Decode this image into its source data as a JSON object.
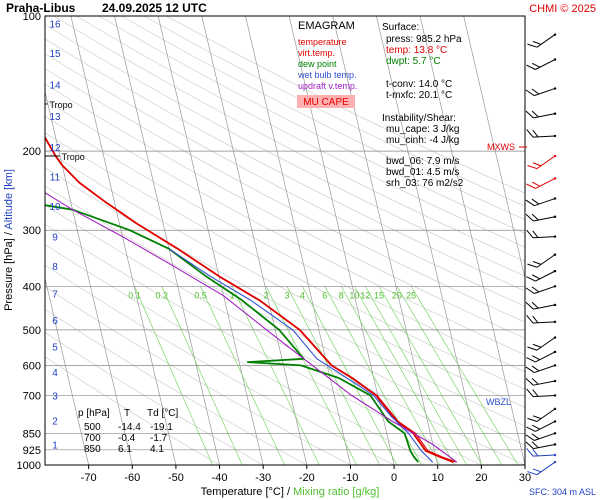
{
  "header": {
    "station": "Praha-Libus",
    "datetime": "24.09.2025 12 UTC",
    "credit": "CHMI © 2025"
  },
  "legend": {
    "title": "EMAGRAM",
    "items": [
      {
        "label": "temperature",
        "color": "#e00000"
      },
      {
        "label": "virt.temp.",
        "color": "#e00000"
      },
      {
        "label": "dew point",
        "color": "#008000"
      },
      {
        "label": "wet bulb temp.",
        "color": "#3050d0"
      },
      {
        "label": "updraft v.temp.",
        "color": "#a020c0"
      }
    ],
    "badge": "MU CAPE"
  },
  "surface_box": {
    "title": "Surface:",
    "lines": [
      {
        "text": "press: 985.2 hPa",
        "color": "#000000"
      },
      {
        "text": "temp: 13.8 °C",
        "color": "#e00000"
      },
      {
        "text": "dwpt: 5.7 °C",
        "color": "#008000"
      },
      {
        "text": "t-conv: 14.0 °C",
        "color": "#000000"
      },
      {
        "text": "t-mxfc: 20.1 °C",
        "color": "#000000"
      },
      {
        "text": "Instability/Shear:",
        "color": "#000000"
      },
      {
        "text": "mu_cape: 3 J/kg",
        "color": "#000000"
      },
      {
        "text": "mu_cinh: -4 J/kg",
        "color": "#000000"
      },
      {
        "text": "bwd_06: 7.9 m/s",
        "color": "#000000"
      },
      {
        "text": "bwd_01: 4.5 m/s",
        "color": "#000000"
      },
      {
        "text": "srh_03: 76 m2/s2",
        "color": "#000000"
      }
    ]
  },
  "table": {
    "headers": [
      "p [hPa]",
      "T",
      "Td [°C]"
    ],
    "rows": [
      [
        "500",
        "-14.4",
        "-19.1"
      ],
      [
        "700",
        "-0.4",
        "-1.7"
      ],
      [
        "850",
        "6.1",
        "4.1"
      ]
    ]
  },
  "annotations": {
    "tropo": "Tropo",
    "mxws": "MXWS",
    "wbzl": "WBZL",
    "sfc": "SFC: 304 m ASL"
  },
  "chart_data": {
    "type": "line",
    "title": "",
    "xlabel_parts": [
      {
        "text": "Temperature [°C]",
        "color": "#000000"
      },
      {
        "text": " / ",
        "color": "#000000"
      },
      {
        "text": "Mixing ratio [g/kg]",
        "color": "#50c030"
      }
    ],
    "ylabel_parts": [
      {
        "text": "Pressure [hPa]",
        "color": "#000000"
      },
      {
        "text": " / ",
        "color": "#000000"
      },
      {
        "text": "Altitude [km]",
        "color": "#2040c0"
      }
    ],
    "xlim": [
      -80,
      30
    ],
    "ylim": [
      1000,
      100
    ],
    "yscale": "log",
    "skew": "skewed isotherms",
    "x_ticks": [
      -70,
      -60,
      -50,
      -40,
      -30,
      -20,
      -10,
      0,
      10,
      20,
      30
    ],
    "y_ticks": [
      100,
      200,
      300,
      400,
      500,
      600,
      700,
      850,
      925,
      1000
    ],
    "altitude_ticks_km": [
      {
        "label": "1",
        "p": 900
      },
      {
        "label": "2",
        "p": 795
      },
      {
        "label": "3",
        "p": 700
      },
      {
        "label": "4",
        "p": 620
      },
      {
        "label": "5",
        "p": 545
      },
      {
        "label": "6",
        "p": 475
      },
      {
        "label": "7",
        "p": 415
      },
      {
        "label": "8",
        "p": 360
      },
      {
        "label": "9",
        "p": 310
      },
      {
        "label": "10",
        "p": 265
      },
      {
        "label": "11",
        "p": 228
      },
      {
        "label": "12",
        "p": 196
      },
      {
        "label": "13",
        "p": 167
      },
      {
        "label": "14",
        "p": 142
      },
      {
        "label": "15",
        "p": 121
      },
      {
        "label": "16",
        "p": 104
      }
    ],
    "mixing_ratio_labels": [
      "0.1",
      "0.2",
      "0.5",
      "1",
      "2",
      "3",
      "4",
      "6",
      "8",
      "10",
      "12",
      "15",
      "20",
      "25"
    ],
    "tropopause_p": [
      157,
      205
    ],
    "series": [
      {
        "name": "temperature",
        "color": "#e00000",
        "points": [
          [
            13.8,
            985
          ],
          [
            11,
            960
          ],
          [
            8,
            930
          ],
          [
            6.1,
            850
          ],
          [
            3,
            800
          ],
          [
            -0.4,
            700
          ],
          [
            -5,
            640
          ],
          [
            -9,
            600
          ],
          [
            -14.4,
            500
          ],
          [
            -22,
            430
          ],
          [
            -30,
            380
          ],
          [
            -38,
            330
          ],
          [
            -46,
            290
          ],
          [
            -52,
            260
          ],
          [
            -57,
            235
          ],
          [
            -60,
            215
          ],
          [
            -61,
            205
          ],
          [
            -63,
            180
          ],
          [
            -62,
            160
          ],
          [
            -61,
            150
          ],
          [
            -61,
            140
          ],
          [
            -60,
            120
          ],
          [
            -60,
            100
          ]
        ]
      },
      {
        "name": "virt.temp.",
        "color": "#e00000",
        "points": [
          [
            14.5,
            985
          ],
          [
            11.5,
            960
          ],
          [
            8.5,
            930
          ],
          [
            6.6,
            850
          ],
          [
            3.3,
            800
          ],
          [
            -0.2,
            700
          ],
          [
            -4.8,
            640
          ],
          [
            -8.9,
            600
          ],
          [
            -14.3,
            500
          ],
          [
            -21.9,
            430
          ],
          [
            -30,
            380
          ],
          [
            -38,
            330
          ],
          [
            -46,
            290
          ],
          [
            -52,
            260
          ],
          [
            -57,
            235
          ],
          [
            -60,
            215
          ],
          [
            -61,
            205
          ],
          [
            -63,
            180
          ],
          [
            -62,
            160
          ],
          [
            -61,
            150
          ],
          [
            -61,
            140
          ],
          [
            -60,
            120
          ],
          [
            -60,
            100
          ]
        ]
      },
      {
        "name": "dew point",
        "color": "#008000",
        "points": [
          [
            5.7,
            985
          ],
          [
            5,
            960
          ],
          [
            4.5,
            930
          ],
          [
            4.1,
            850
          ],
          [
            1,
            800
          ],
          [
            -1.7,
            700
          ],
          [
            -8,
            640
          ],
          [
            -16,
            600
          ],
          [
            -28,
            590
          ],
          [
            -15,
            580
          ],
          [
            -19.1,
            500
          ],
          [
            -26,
            430
          ],
          [
            -33,
            380
          ],
          [
            -40,
            330
          ],
          [
            -48,
            300
          ],
          [
            -60,
            270
          ],
          [
            -70,
            260
          ],
          [
            -70,
            230
          ],
          [
            -72,
            210
          ],
          [
            -74,
            200
          ],
          [
            -80,
            170
          ]
        ]
      },
      {
        "name": "wet bulb temp.",
        "color": "#3050d0",
        "points": [
          [
            9,
            985
          ],
          [
            7,
            930
          ],
          [
            5,
            850
          ],
          [
            2,
            780
          ],
          [
            -1,
            700
          ],
          [
            -8,
            620
          ],
          [
            -12,
            580
          ],
          [
            -16,
            500
          ],
          [
            -24,
            430
          ],
          [
            -32,
            380
          ],
          [
            -40,
            330
          ]
        ]
      },
      {
        "name": "updraft v.temp.",
        "color": "#a020c0",
        "points": [
          [
            14.5,
            985
          ],
          [
            10,
            900
          ],
          [
            2,
            800
          ],
          [
            -6,
            700
          ],
          [
            -15,
            580
          ],
          [
            -22,
            500
          ],
          [
            -30,
            420
          ],
          [
            -40,
            360
          ],
          [
            -50,
            310
          ],
          [
            -60,
            270
          ],
          [
            -70,
            230
          ],
          [
            -80,
            200
          ]
        ]
      }
    ],
    "wind_barbs_present": true
  }
}
